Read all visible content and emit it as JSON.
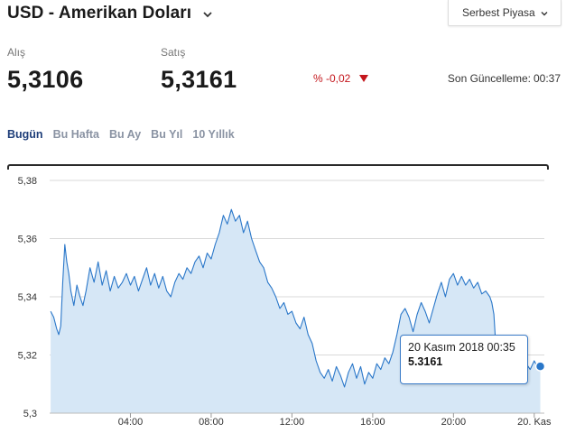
{
  "header": {
    "title": "USD - Amerikan Doları",
    "market_select": "Serbest Piyasa"
  },
  "prices": {
    "buy_label": "Alış",
    "buy_value": "5,3106",
    "sell_label": "Satış",
    "sell_value": "5,3161",
    "change": "% -0,02",
    "updated_label": "Son Güncelleme:",
    "updated_time": "00:37"
  },
  "tabs": [
    {
      "label": "Bugün",
      "active": true
    },
    {
      "label": "Bu Hafta",
      "active": false
    },
    {
      "label": "Bu Ay",
      "active": false
    },
    {
      "label": "Bu Yıl",
      "active": false
    },
    {
      "label": "10 Yıllık",
      "active": false
    }
  ],
  "tooltip": {
    "date": "20 Kasım 2018 00:35",
    "value": "5.3161"
  },
  "colors": {
    "line": "#2a77c9",
    "fill": "#d6e7f6",
    "grid": "#d9d9d9",
    "negative": "#c4161c",
    "active_tab": "#1f3f7a",
    "inactive_tab": "#8a93a3"
  },
  "chart_data": {
    "type": "area",
    "ylim": [
      5.3,
      5.38
    ],
    "y_ticks": [
      "5,38",
      "5,36",
      "5,34",
      "5,32",
      "5,3"
    ],
    "x_ticks": [
      "04:00",
      "08:00",
      "12:00",
      "16:00",
      "20:00",
      "20. Kas"
    ],
    "x_tick_hours": [
      4,
      8,
      12,
      16,
      20,
      24
    ],
    "xlim_hours": [
      0,
      24.5
    ],
    "points": [
      [
        0.05,
        5.335
      ],
      [
        0.2,
        5.333
      ],
      [
        0.35,
        5.329
      ],
      [
        0.45,
        5.327
      ],
      [
        0.55,
        5.33
      ],
      [
        0.65,
        5.345
      ],
      [
        0.75,
        5.358
      ],
      [
        0.85,
        5.352
      ],
      [
        0.95,
        5.348
      ],
      [
        1.05,
        5.342
      ],
      [
        1.2,
        5.337
      ],
      [
        1.35,
        5.344
      ],
      [
        1.5,
        5.34
      ],
      [
        1.65,
        5.337
      ],
      [
        1.8,
        5.342
      ],
      [
        2.0,
        5.35
      ],
      [
        2.2,
        5.345
      ],
      [
        2.4,
        5.352
      ],
      [
        2.6,
        5.344
      ],
      [
        2.8,
        5.349
      ],
      [
        3.0,
        5.342
      ],
      [
        3.2,
        5.347
      ],
      [
        3.4,
        5.343
      ],
      [
        3.6,
        5.345
      ],
      [
        3.8,
        5.348
      ],
      [
        4.0,
        5.344
      ],
      [
        4.2,
        5.347
      ],
      [
        4.4,
        5.342
      ],
      [
        4.6,
        5.346
      ],
      [
        4.8,
        5.35
      ],
      [
        5.0,
        5.344
      ],
      [
        5.2,
        5.348
      ],
      [
        5.4,
        5.343
      ],
      [
        5.6,
        5.347
      ],
      [
        5.8,
        5.342
      ],
      [
        6.0,
        5.34
      ],
      [
        6.2,
        5.345
      ],
      [
        6.4,
        5.348
      ],
      [
        6.6,
        5.346
      ],
      [
        6.8,
        5.35
      ],
      [
        7.0,
        5.348
      ],
      [
        7.2,
        5.352
      ],
      [
        7.4,
        5.354
      ],
      [
        7.6,
        5.35
      ],
      [
        7.8,
        5.355
      ],
      [
        8.0,
        5.353
      ],
      [
        8.2,
        5.358
      ],
      [
        8.4,
        5.362
      ],
      [
        8.6,
        5.368
      ],
      [
        8.8,
        5.365
      ],
      [
        9.0,
        5.37
      ],
      [
        9.2,
        5.366
      ],
      [
        9.4,
        5.368
      ],
      [
        9.6,
        5.362
      ],
      [
        9.8,
        5.366
      ],
      [
        10.0,
        5.36
      ],
      [
        10.2,
        5.356
      ],
      [
        10.4,
        5.352
      ],
      [
        10.6,
        5.35
      ],
      [
        10.8,
        5.345
      ],
      [
        11.0,
        5.343
      ],
      [
        11.2,
        5.34
      ],
      [
        11.4,
        5.336
      ],
      [
        11.6,
        5.338
      ],
      [
        11.8,
        5.334
      ],
      [
        12.0,
        5.335
      ],
      [
        12.2,
        5.331
      ],
      [
        12.4,
        5.329
      ],
      [
        12.6,
        5.333
      ],
      [
        12.8,
        5.327
      ],
      [
        13.0,
        5.324
      ],
      [
        13.2,
        5.318
      ],
      [
        13.4,
        5.314
      ],
      [
        13.6,
        5.312
      ],
      [
        13.8,
        5.315
      ],
      [
        14.0,
        5.311
      ],
      [
        14.2,
        5.316
      ],
      [
        14.4,
        5.313
      ],
      [
        14.6,
        5.309
      ],
      [
        14.8,
        5.314
      ],
      [
        15.0,
        5.317
      ],
      [
        15.2,
        5.312
      ],
      [
        15.4,
        5.316
      ],
      [
        15.6,
        5.31
      ],
      [
        15.8,
        5.314
      ],
      [
        16.0,
        5.312
      ],
      [
        16.2,
        5.317
      ],
      [
        16.4,
        5.315
      ],
      [
        16.6,
        5.319
      ],
      [
        16.8,
        5.317
      ],
      [
        17.0,
        5.321
      ],
      [
        17.2,
        5.327
      ],
      [
        17.4,
        5.334
      ],
      [
        17.6,
        5.336
      ],
      [
        17.8,
        5.333
      ],
      [
        18.0,
        5.328
      ],
      [
        18.2,
        5.334
      ],
      [
        18.4,
        5.338
      ],
      [
        18.6,
        5.335
      ],
      [
        18.8,
        5.331
      ],
      [
        19.0,
        5.336
      ],
      [
        19.2,
        5.341
      ],
      [
        19.4,
        5.345
      ],
      [
        19.6,
        5.34
      ],
      [
        19.8,
        5.346
      ],
      [
        20.0,
        5.348
      ],
      [
        20.2,
        5.344
      ],
      [
        20.4,
        5.347
      ],
      [
        20.6,
        5.344
      ],
      [
        20.8,
        5.346
      ],
      [
        21.0,
        5.343
      ],
      [
        21.2,
        5.345
      ],
      [
        21.4,
        5.341
      ],
      [
        21.6,
        5.342
      ],
      [
        21.8,
        5.34
      ],
      [
        21.9,
        5.338
      ],
      [
        22.0,
        5.334
      ],
      [
        22.1,
        5.323
      ],
      [
        22.2,
        5.318
      ],
      [
        22.3,
        5.315
      ],
      [
        22.4,
        5.32
      ],
      [
        22.5,
        5.317
      ],
      [
        22.6,
        5.316
      ],
      [
        22.7,
        5.318
      ],
      [
        22.8,
        5.315
      ],
      [
        23.0,
        5.317
      ],
      [
        23.2,
        5.314
      ],
      [
        23.4,
        5.316
      ],
      [
        23.6,
        5.317
      ],
      [
        23.8,
        5.315
      ],
      [
        24.0,
        5.318
      ],
      [
        24.15,
        5.316
      ],
      [
        24.3,
        5.3161
      ]
    ],
    "highlight": {
      "x": 24.3,
      "y": 5.3161
    }
  }
}
